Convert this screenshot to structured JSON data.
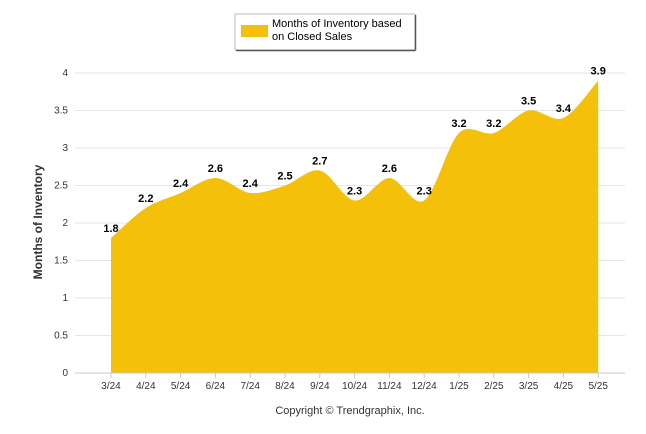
{
  "chart_data": {
    "type": "area",
    "categories": [
      "3/24",
      "4/24",
      "5/24",
      "6/24",
      "7/24",
      "8/24",
      "9/24",
      "10/24",
      "11/24",
      "12/24",
      "1/25",
      "2/25",
      "3/25",
      "4/25",
      "5/25"
    ],
    "series": [
      {
        "name": "Months of Inventory based on Closed Sales",
        "values": [
          1.8,
          2.2,
          2.4,
          2.6,
          2.4,
          2.5,
          2.7,
          2.3,
          2.6,
          2.3,
          3.2,
          3.2,
          3.5,
          3.4,
          3.9
        ],
        "labels": [
          "1.8",
          "2.2",
          "2.4",
          "2.6",
          "2.4",
          "2.5",
          "2.7",
          "2.3",
          "2.6",
          "2.3",
          "3.2",
          "3.2",
          "3.5",
          "3.4",
          "3.9"
        ]
      }
    ],
    "legend": {
      "line1": "Months of Inventory based",
      "line2": "on Closed Sales",
      "placement": "top-center"
    },
    "ylabel": "Months of Inventory",
    "ylim": [
      0,
      4
    ],
    "yticks": [
      "0",
      "0.5",
      "1",
      "1.5",
      "2",
      "2.5",
      "3",
      "3.5",
      "4"
    ],
    "grid": true,
    "credit": "Copyright © Trendgraphix, Inc."
  },
  "colors": {
    "area": "#f5c00a",
    "grid": "#e6e6e6",
    "axis": "#c8c8c8"
  }
}
